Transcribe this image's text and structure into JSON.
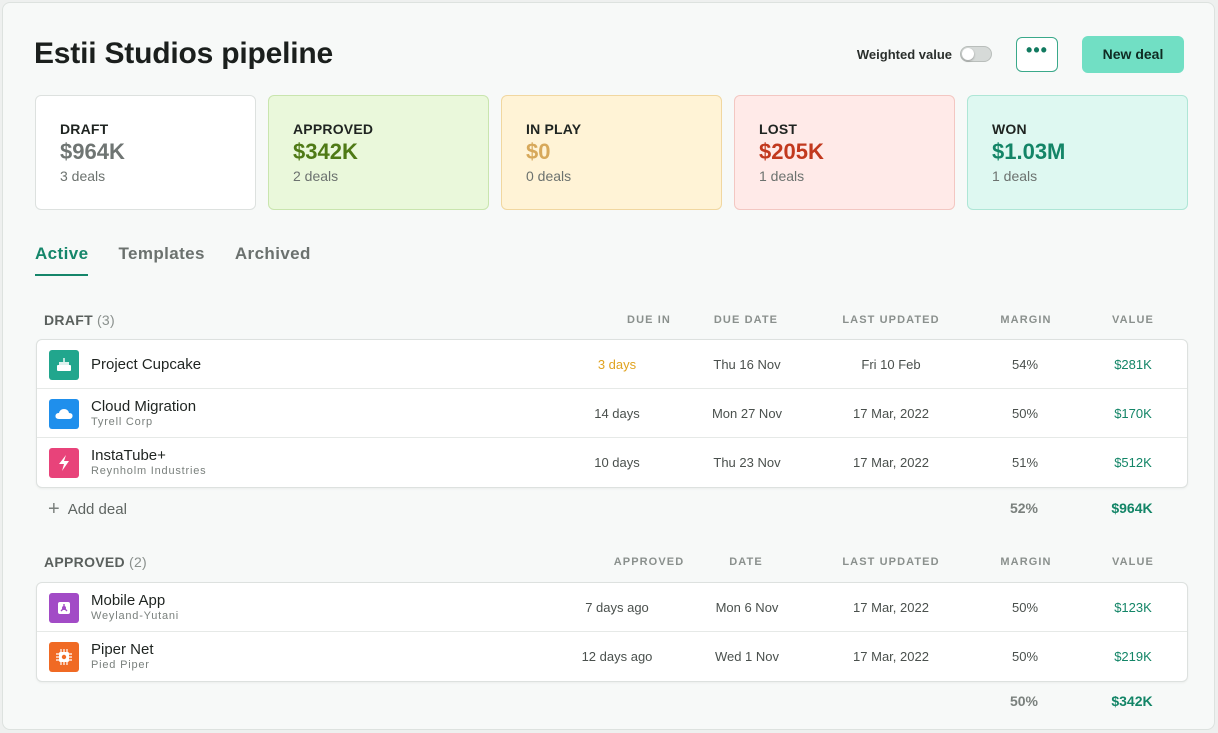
{
  "header": {
    "title": "Estii Studios pipeline",
    "weighted_label": "Weighted value",
    "more_label": "•••",
    "new_deal_label": "New deal"
  },
  "stats": [
    {
      "label": "DRAFT",
      "value": "$964K",
      "count": "3 deals"
    },
    {
      "label": "APPROVED",
      "value": "$342K",
      "count": "2 deals"
    },
    {
      "label": "IN PLAY",
      "value": "$0",
      "count": "0 deals"
    },
    {
      "label": "LOST",
      "value": "$205K",
      "count": "1 deals"
    },
    {
      "label": "WON",
      "value": "$1.03M",
      "count": "1 deals"
    }
  ],
  "tabs": [
    "Active",
    "Templates",
    "Archived"
  ],
  "draft": {
    "name": "DRAFT",
    "count": "(3)",
    "columns": [
      "DUE IN",
      "DUE DATE",
      "LAST UPDATED",
      "MARGIN",
      "VALUE"
    ],
    "rows": [
      {
        "name": "Project Cupcake",
        "sub": "",
        "icon": "cake-icon",
        "color": "#21a68d",
        "due_in": "3 days",
        "due_date": "Thu 16 Nov",
        "updated": "Fri 10 Feb",
        "margin": "54%",
        "value": "$281K"
      },
      {
        "name": "Cloud Migration",
        "sub": "Tyrell Corp",
        "icon": "cloud-icon",
        "color": "#1f8fec",
        "due_in": "14 days",
        "due_date": "Mon 27 Nov",
        "updated": "17 Mar, 2022",
        "margin": "50%",
        "value": "$170K"
      },
      {
        "name": "InstaTube+",
        "sub": "Reynholm Industries",
        "icon": "bolt-icon",
        "color": "#e8437a",
        "due_in": "10 days",
        "due_date": "Thu 23 Nov",
        "updated": "17 Mar, 2022",
        "margin": "51%",
        "value": "$512K"
      }
    ],
    "add_label": "Add deal",
    "total_margin": "52%",
    "total_value": "$964K"
  },
  "approved": {
    "name": "APPROVED",
    "count": "(2)",
    "columns": [
      "APPROVED",
      "DATE",
      "LAST UPDATED",
      "MARGIN",
      "VALUE"
    ],
    "rows": [
      {
        "name": "Mobile App",
        "sub": "Weyland-Yutani",
        "icon": "app-icon",
        "color": "#a24bc6",
        "due_in": "7 days ago",
        "due_date": "Mon 6 Nov",
        "updated": "17 Mar, 2022",
        "margin": "50%",
        "value": "$123K"
      },
      {
        "name": "Piper Net",
        "sub": "Pied Piper",
        "icon": "chip-icon",
        "color": "#f06a24",
        "due_in": "12 days ago",
        "due_date": "Wed 1 Nov",
        "updated": "17 Mar, 2022",
        "margin": "50%",
        "value": "$219K"
      }
    ],
    "total_margin": "50%",
    "total_value": "$342K"
  }
}
